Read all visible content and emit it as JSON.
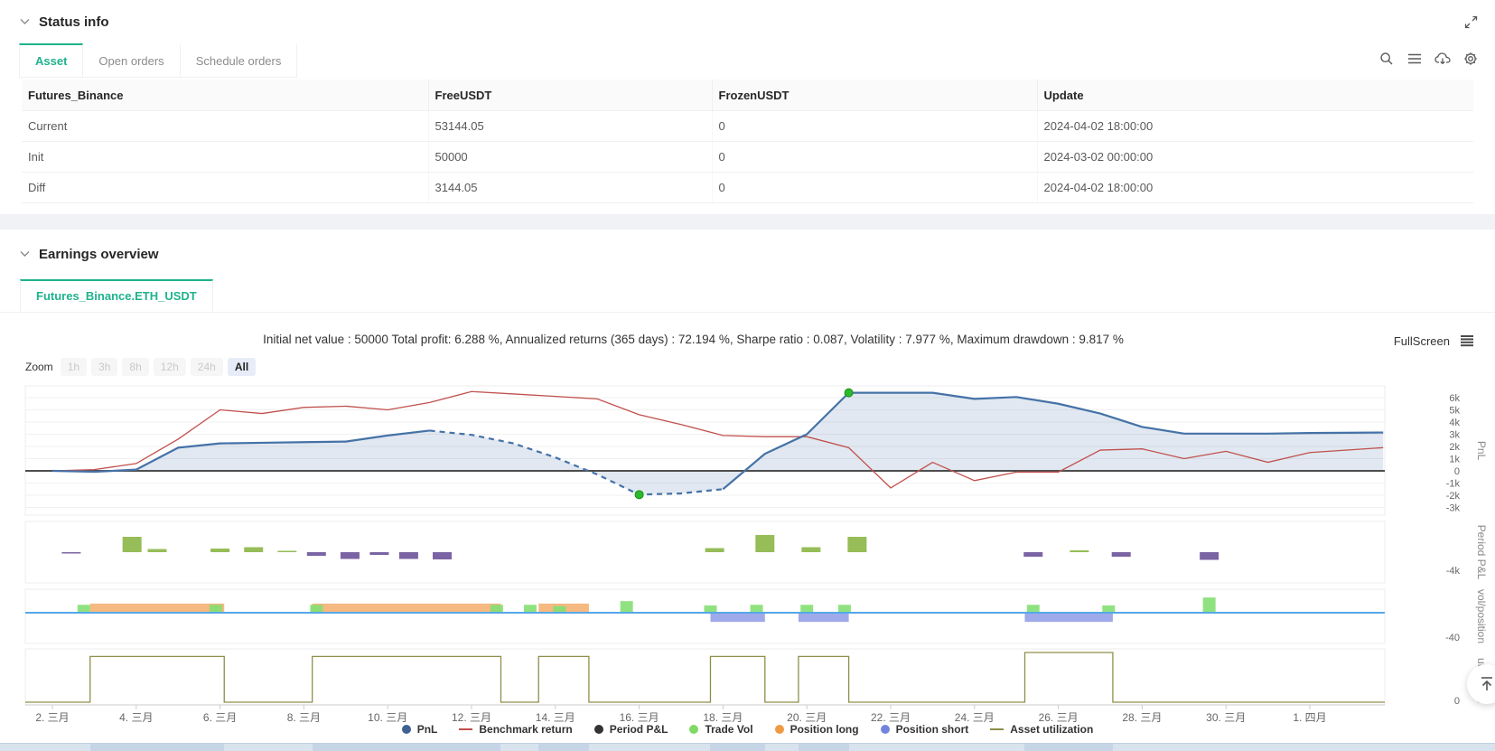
{
  "status_panel": {
    "title": "Status info",
    "tabs": [
      {
        "label": "Asset",
        "active": true
      },
      {
        "label": "Open orders",
        "active": false
      },
      {
        "label": "Schedule orders",
        "active": false
      }
    ],
    "toolbar_icons": [
      "search-icon",
      "menu-icon",
      "cloud-download-icon",
      "gear-icon",
      "expand-icon"
    ],
    "table": {
      "columns": [
        "Futures_Binance",
        "FreeUSDT",
        "FrozenUSDT",
        "Update"
      ],
      "rows": [
        {
          "label": "Current",
          "free": "53144.05",
          "frozen": "0",
          "update": "2024-04-02 18:00:00"
        },
        {
          "label": "Init",
          "free": "50000",
          "frozen": "0",
          "update": "2024-03-02 00:00:00"
        },
        {
          "label": "Diff",
          "free": "3144.05",
          "frozen": "0",
          "update": "2024-04-02 18:00:00"
        }
      ]
    }
  },
  "earnings_panel": {
    "title": "Earnings overview",
    "tab": "Futures_Binance.ETH_USDT",
    "stats_line": "Initial net value : 50000 Total profit: 6.288 %, Annualized returns (365 days) : 72.194 %, Sharpe ratio : 0.087, Volatility : 7.977 %, Maximum drawdown : 9.817 %",
    "fullscreen_label": "FullScreen",
    "zoom": {
      "label": "Zoom",
      "options": [
        "1h",
        "3h",
        "8h",
        "12h",
        "24h",
        "All"
      ],
      "active": "All"
    }
  },
  "colors": {
    "accent_green": "#1fb28d",
    "link_blue": "#6d9bf7",
    "alert_red": "#f0403c",
    "pnl_blue": "#4572a7",
    "benchmark_red": "#c0504d",
    "bar_green": "#96bd58",
    "bar_purple": "#7b64a3",
    "trade_vol_green": "#84df72",
    "position_long_orange": "#f4a762",
    "position_short_purple": "#8e9be7",
    "utilization_olive": "#8f8f4b",
    "marker_green": "#2eb82e"
  },
  "chart_data": {
    "type": "line",
    "description": "Multi-panel time series: PnL/benchmark area-line chart, period P&L bars, trade volume/position bars, asset utilization steps. X axis = days since 2024-03-02.",
    "x_axis": {
      "tick_days": [
        0,
        2,
        4,
        6,
        8,
        10,
        12,
        14,
        16,
        18,
        20,
        22,
        24,
        26,
        28,
        30
      ],
      "tick_labels": [
        "2. 三月",
        "4. 三月",
        "6. 三月",
        "8. 三月",
        "10. 三月",
        "12. 三月",
        "14. 三月",
        "16. 三月",
        "18. 三月",
        "20. 三月",
        "22. 三月",
        "24. 三月",
        "26. 三月",
        "28. 三月",
        "30. 三月",
        "1. 四月"
      ]
    },
    "panels": [
      {
        "name": "PnL",
        "ylabel": "PnL",
        "ylim": [
          -3500,
          6800
        ],
        "yticks": [
          [
            6000,
            "6k"
          ],
          [
            5000,
            "5k"
          ],
          [
            4000,
            "4k"
          ],
          [
            3000,
            "3k"
          ],
          [
            2000,
            "2k"
          ],
          [
            1000,
            "1k"
          ],
          [
            0,
            "0"
          ],
          [
            -1000,
            "-1k"
          ],
          [
            -2000,
            "-2k"
          ],
          [
            -3000,
            "-3k"
          ]
        ],
        "series": [
          {
            "name": "PnL",
            "type": "area-line",
            "color": "#4572a7",
            "dash_index_range": [
              9,
              16
            ],
            "points": [
              [
                0,
                0
              ],
              [
                1,
                -80
              ],
              [
                2,
                100
              ],
              [
                3,
                1900
              ],
              [
                4,
                2250
              ],
              [
                5,
                2300
              ],
              [
                6,
                2350
              ],
              [
                7,
                2400
              ],
              [
                8,
                2900
              ],
              [
                9,
                3300
              ],
              [
                10,
                2950
              ],
              [
                11,
                2250
              ],
              [
                12,
                1100
              ],
              [
                13,
                -300
              ],
              [
                14,
                -1950
              ],
              [
                15,
                -1850
              ],
              [
                16,
                -1500
              ],
              [
                17,
                1400
              ],
              [
                18,
                3000
              ],
              [
                19,
                6400
              ],
              [
                20,
                6400
              ],
              [
                21,
                6400
              ],
              [
                22,
                5900
              ],
              [
                23,
                6050
              ],
              [
                24,
                5500
              ],
              [
                25,
                4700
              ],
              [
                26,
                3600
              ],
              [
                27,
                3050
              ],
              [
                28,
                3050
              ],
              [
                29,
                3050
              ],
              [
                30,
                3100
              ],
              [
                31.75,
                3144
              ]
            ]
          },
          {
            "name": "Benchmark return",
            "type": "line",
            "color": "#c0504d",
            "points": [
              [
                0,
                0
              ],
              [
                1,
                100
              ],
              [
                2,
                600
              ],
              [
                3,
                2600
              ],
              [
                4,
                5000
              ],
              [
                5,
                4700
              ],
              [
                6,
                5200
              ],
              [
                7,
                5300
              ],
              [
                8,
                5000
              ],
              [
                9,
                5600
              ],
              [
                10,
                6500
              ],
              [
                11,
                6300
              ],
              [
                12,
                6100
              ],
              [
                13,
                5900
              ],
              [
                14,
                4600
              ],
              [
                15,
                3800
              ],
              [
                16,
                2900
              ],
              [
                17,
                2800
              ],
              [
                18,
                2800
              ],
              [
                19,
                1900
              ],
              [
                20,
                -1400
              ],
              [
                21,
                700
              ],
              [
                22,
                -800
              ],
              [
                23,
                -100
              ],
              [
                24,
                -100
              ],
              [
                25,
                1700
              ],
              [
                26,
                1800
              ],
              [
                27,
                1000
              ],
              [
                28,
                1600
              ],
              [
                29,
                700
              ],
              [
                30,
                1500
              ],
              [
                31.75,
                1900
              ]
            ]
          }
        ],
        "markers": [
          {
            "day": 14,
            "value": -1950
          },
          {
            "day": 19,
            "value": 6400
          }
        ]
      },
      {
        "name": "Period P&L",
        "ylabel": "Period P&L",
        "ylim": [
          -4000,
          4000
        ],
        "yticks": [
          [
            -4000,
            "-4k"
          ]
        ],
        "bars": [
          [
            0.45,
            -300
          ],
          [
            1.9,
            3400
          ],
          [
            2.5,
            700
          ],
          [
            4.0,
            800
          ],
          [
            4.8,
            1100
          ],
          [
            5.6,
            300
          ],
          [
            6.3,
            -800
          ],
          [
            7.1,
            -1500
          ],
          [
            7.8,
            -600
          ],
          [
            8.5,
            -1500
          ],
          [
            9.3,
            -1600
          ],
          [
            15.8,
            900
          ],
          [
            17.0,
            3800
          ],
          [
            18.1,
            1100
          ],
          [
            19.2,
            3400
          ],
          [
            23.4,
            -1000
          ],
          [
            24.5,
            400
          ],
          [
            25.5,
            -1000
          ],
          [
            27.6,
            -1700
          ]
        ]
      },
      {
        "name": "vol/position",
        "ylabel": "vol/position",
        "ylim": [
          -40,
          40
        ],
        "yticks": [
          [
            -40,
            "-40"
          ]
        ],
        "trade_vol_bars": [
          [
            0.75,
            13
          ],
          [
            3.9,
            13
          ],
          [
            6.3,
            13
          ],
          [
            10.6,
            13
          ],
          [
            11.4,
            13
          ],
          [
            12.1,
            11
          ],
          [
            13.7,
            19
          ],
          [
            15.7,
            12
          ],
          [
            16.8,
            13
          ],
          [
            18.0,
            13
          ],
          [
            18.9,
            13
          ],
          [
            23.4,
            13
          ],
          [
            25.2,
            12
          ],
          [
            27.6,
            25
          ]
        ],
        "long_bands": [
          [
            0.9,
            4.1,
            15
          ],
          [
            6.2,
            10.7,
            15
          ],
          [
            11.6,
            12.8,
            15
          ]
        ],
        "short_bands": [
          [
            15.7,
            17.0,
            -15
          ],
          [
            17.8,
            19.0,
            -15
          ],
          [
            23.2,
            25.3,
            -15
          ]
        ]
      },
      {
        "name": "utilization",
        "ylabel": "utilization",
        "ylim": [
          0,
          1.08
        ],
        "yticks": [
          [
            0,
            "0"
          ]
        ],
        "pulses": [
          [
            0.9,
            4.1,
            0.92
          ],
          [
            6.2,
            10.7,
            0.92
          ],
          [
            11.6,
            12.8,
            0.92
          ],
          [
            15.7,
            17.0,
            0.92
          ],
          [
            17.8,
            19.0,
            0.92
          ],
          [
            23.2,
            25.3,
            1.0
          ]
        ]
      }
    ],
    "legend": [
      {
        "label": "PnL",
        "marker": "circle",
        "color": "#3e6294"
      },
      {
        "label": "Benchmark return",
        "marker": "line",
        "color": "#c0504d"
      },
      {
        "label": "Period P&L",
        "marker": "circle",
        "color": "#333333"
      },
      {
        "label": "Trade Vol",
        "marker": "circle",
        "color": "#7fd965"
      },
      {
        "label": "Position long",
        "marker": "circle",
        "color": "#f09a44"
      },
      {
        "label": "Position short",
        "marker": "circle",
        "color": "#7484dd"
      },
      {
        "label": "Asset utilization",
        "marker": "line",
        "color": "#8f8f4b"
      }
    ]
  }
}
